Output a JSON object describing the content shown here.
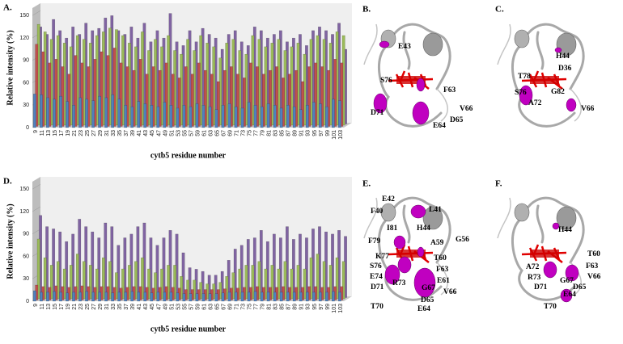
{
  "chart_data": [
    {
      "type": "bar3d",
      "panel": "A.",
      "ylabel": "Relative intensity (%)",
      "xlabel": "cytb5 residue number",
      "ylim": [
        0,
        160
      ],
      "yticks": [
        0,
        30,
        60,
        90,
        120,
        150
      ],
      "categories": [
        "9",
        "11",
        "13",
        "15",
        "17",
        "19",
        "21",
        "23",
        "25",
        "27",
        "29",
        "31",
        "33",
        "35",
        "37",
        "39",
        "41",
        "43",
        "45",
        "47",
        "49",
        "51",
        "53",
        "55",
        "57",
        "59",
        "61",
        "63",
        "65",
        "67",
        "69",
        "71",
        "73",
        "75",
        "77",
        "79",
        "81",
        "83",
        "85",
        "87",
        "89",
        "91",
        "93",
        "95",
        "97",
        "99",
        "101",
        "103"
      ],
      "series": [
        {
          "color": "#4f81bd",
          "values": [
            45,
            44,
            40,
            38,
            42,
            35,
            30,
            40,
            38,
            36,
            42,
            40,
            44,
            38,
            30,
            28,
            35,
            32,
            30,
            28,
            34,
            30,
            26,
            30,
            28,
            32,
            30,
            28,
            24,
            30,
            32,
            28,
            26,
            34,
            30,
            28,
            32,
            30,
            26,
            30,
            28,
            24,
            30,
            34,
            32,
            28,
            38,
            36
          ]
        },
        {
          "color": "#c0504d",
          "values": [
            110,
            100,
            85,
            90,
            80,
            70,
            95,
            85,
            80,
            90,
            100,
            95,
            105,
            85,
            80,
            75,
            90,
            70,
            80,
            75,
            85,
            70,
            65,
            80,
            70,
            85,
            75,
            70,
            60,
            75,
            80,
            70,
            65,
            85,
            80,
            70,
            75,
            80,
            65,
            70,
            75,
            60,
            80,
            85,
            80,
            75,
            90,
            85
          ]
        },
        {
          "color": "#9bbb59",
          "values": [
            135,
            125,
            115,
            120,
            110,
            105,
            120,
            115,
            110,
            120,
            125,
            130,
            128,
            120,
            110,
            105,
            125,
            100,
            115,
            105,
            120,
            100,
            95,
            115,
            100,
            120,
            110,
            105,
            90,
            110,
            115,
            100,
            95,
            120,
            115,
            105,
            110,
            115,
            100,
            105,
            110,
            95,
            115,
            120,
            115,
            110,
            125,
            120
          ]
        },
        {
          "color": "#8064a2",
          "values": [
            130,
            120,
            140,
            125,
            115,
            130,
            120,
            135,
            125,
            128,
            142,
            145,
            125,
            120,
            130,
            115,
            135,
            110,
            125,
            115,
            148,
            110,
            105,
            125,
            110,
            128,
            120,
            115,
            100,
            120,
            125,
            110,
            105,
            130,
            125,
            115,
            120,
            125,
            110,
            115,
            120,
            105,
            125,
            130,
            125,
            120,
            135,
            100
          ]
        }
      ]
    },
    {
      "type": "bar3d",
      "panel": "D.",
      "ylabel": "Relative intensity (%)",
      "xlabel": "cytb5 residue number",
      "ylim": [
        0,
        160
      ],
      "yticks": [
        0,
        30,
        60,
        90,
        120,
        150
      ],
      "categories": [
        "9",
        "11",
        "13",
        "15",
        "17",
        "19",
        "21",
        "23",
        "25",
        "27",
        "29",
        "31",
        "33",
        "35",
        "37",
        "39",
        "41",
        "43",
        "45",
        "47",
        "49",
        "51",
        "53",
        "55",
        "57",
        "59",
        "61",
        "63",
        "65",
        "67",
        "69",
        "71",
        "73",
        "75",
        "77",
        "79",
        "81",
        "83",
        "85",
        "87",
        "89",
        "91",
        "93",
        "95",
        "97",
        "99",
        "101",
        "103"
      ],
      "series": [
        {
          "color": "#4f81bd",
          "values": [
            14,
            12,
            12,
            13,
            12,
            11,
            12,
            12,
            13,
            12,
            12,
            12,
            11,
            12,
            12,
            13,
            12,
            12,
            11,
            12,
            12,
            12,
            11,
            10,
            10,
            10,
            10,
            10,
            10,
            11,
            12,
            12,
            12,
            12,
            13,
            12,
            12,
            12,
            12,
            12,
            12,
            12,
            12,
            12,
            12,
            12,
            13,
            12
          ]
        },
        {
          "color": "#c0504d",
          "values": [
            20,
            18,
            17,
            19,
            18,
            17,
            18,
            19,
            18,
            17,
            18,
            18,
            17,
            16,
            17,
            18,
            18,
            17,
            16,
            17,
            18,
            17,
            16,
            14,
            14,
            14,
            14,
            14,
            14,
            15,
            16,
            16,
            17,
            17,
            18,
            17,
            17,
            17,
            18,
            17,
            17,
            17,
            18,
            18,
            17,
            17,
            18,
            18
          ]
        },
        {
          "color": "#9bbb59",
          "values": [
            80,
            55,
            45,
            50,
            40,
            45,
            60,
            50,
            45,
            40,
            55,
            50,
            35,
            40,
            45,
            50,
            55,
            40,
            35,
            40,
            45,
            45,
            30,
            25,
            25,
            22,
            20,
            20,
            22,
            30,
            35,
            40,
            45,
            45,
            50,
            40,
            45,
            40,
            50,
            40,
            45,
            40,
            55,
            60,
            50,
            45,
            55,
            50
          ]
        },
        {
          "color": "#8064a2",
          "values": [
            110,
            95,
            92,
            88,
            75,
            85,
            105,
            95,
            88,
            80,
            100,
            95,
            70,
            80,
            85,
            95,
            100,
            80,
            70,
            80,
            90,
            85,
            60,
            40,
            38,
            35,
            30,
            30,
            35,
            50,
            65,
            70,
            78,
            80,
            90,
            75,
            85,
            80,
            95,
            78,
            85,
            80,
            92,
            95,
            88,
            85,
            90,
            82
          ]
        }
      ]
    }
  ],
  "structures": [
    {
      "panel": "B.",
      "labels": [
        "E43",
        "S76",
        "F63",
        "V66",
        "D71",
        "E64",
        "D65"
      ]
    },
    {
      "panel": "C.",
      "labels": [
        "H44",
        "D36",
        "T78",
        "S76",
        "G82",
        "A72",
        "V66"
      ]
    },
    {
      "panel": "E.",
      "labels": [
        "E42",
        "F40",
        "L41",
        "I81",
        "H44",
        "G56",
        "F79",
        "K77",
        "A59",
        "T60",
        "S76",
        "F63",
        "E74",
        "E61",
        "D71",
        "R73",
        "G67",
        "V66",
        "D65",
        "T70",
        "E64"
      ]
    },
    {
      "panel": "F.",
      "labels": [
        "H44",
        "T60",
        "A72",
        "F63",
        "R73",
        "V66",
        "D71",
        "G67",
        "D65",
        "T70",
        "E64"
      ]
    }
  ]
}
